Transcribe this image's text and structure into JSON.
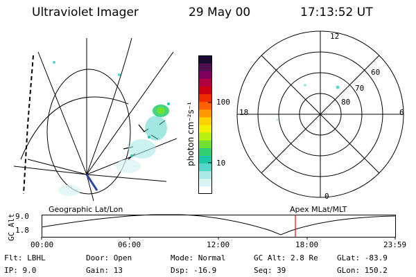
{
  "header": {
    "instrument": "Ultraviolet Imager",
    "date": "29 May 00",
    "time": "17:13:52 UT"
  },
  "colorbar": {
    "unit_label": "photon cm⁻²s⁻¹",
    "ticks": [
      "100",
      "10"
    ],
    "colors": [
      "#ffffff",
      "#d8f4f4",
      "#aae8e8",
      "#55d6c8",
      "#1ec8a8",
      "#30d070",
      "#70e030",
      "#b8f010",
      "#f0f000",
      "#ffd000",
      "#ff9800",
      "#ff6000",
      "#ee2a00",
      "#cc0010",
      "#b00040",
      "#800060",
      "#501050",
      "#1a0a30"
    ]
  },
  "polar_plot": {
    "mlt_labels": [
      "12",
      "18",
      "6",
      "0"
    ],
    "lat_labels": [
      "60",
      "70",
      "80"
    ]
  },
  "timeline": {
    "left_label": "Geographic Lat/Lon",
    "right_label": "Apex MLat/MLT",
    "y_axis_label": "GC Alt",
    "y_ticks": [
      "9.0",
      "1.8"
    ],
    "x_ticks": [
      "00:00",
      "06:00",
      "12:00",
      "18:00",
      "23:59"
    ],
    "current_time_marker_color": "#ff0000",
    "curve_color": "#000000"
  },
  "status": {
    "flt": "Flt: LBHL",
    "ip": "IP:  9.0",
    "door": "Door: Open",
    "gain": "Gain: 13",
    "mode": "Mode: Normal",
    "dsp": "Dsp:  -16.9",
    "gc_alt": "GC Alt: 2.8 Re",
    "seq": "Seq: 39",
    "glat": "GLat: -83.9",
    "glon": "GLon: 150.2"
  }
}
